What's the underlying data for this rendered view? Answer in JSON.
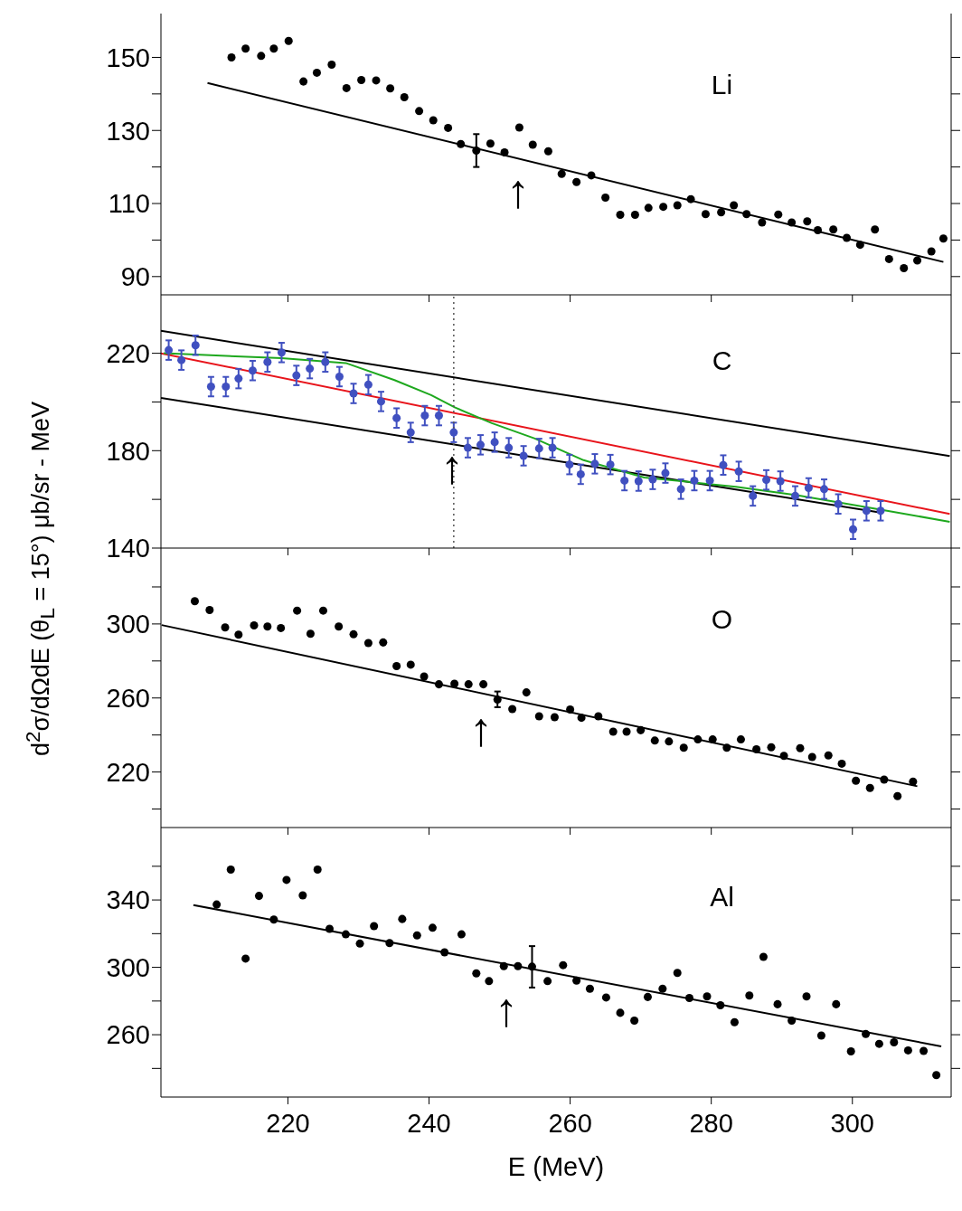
{
  "chart_data": [
    {
      "type": "scatter",
      "title": "Li",
      "xlim": [
        202,
        314
      ],
      "xticks": [
        220,
        240,
        260,
        280,
        300
      ],
      "ylim": [
        85,
        162
      ],
      "yticks": [
        90,
        {
          "value": 100,
          "label": null
        },
        110,
        {
          "value": 120,
          "label": null
        },
        130,
        {
          "value": 140,
          "label": null
        },
        150
      ],
      "tick_labels": "y",
      "marker": "circle",
      "series": [
        {
          "color": "#000000",
          "x": [
            212.0,
            214.0,
            216.2,
            218.0,
            220.1,
            222.2,
            224.1,
            226.2,
            228.3,
            230.4,
            232.5,
            234.5,
            236.5,
            238.6,
            240.6,
            242.7,
            244.5,
            246.7,
            248.7,
            250.7,
            252.8,
            254.7,
            256.9,
            258.8,
            260.9,
            263.0,
            265.0,
            267.1,
            269.2,
            271.1,
            273.2,
            275.2,
            277.1,
            279.2,
            281.4,
            283.2,
            285.0,
            287.2,
            289.5,
            291.4,
            293.6,
            295.1,
            297.3,
            299.2,
            301.1,
            303.2,
            305.2,
            307.3,
            309.2,
            311.2,
            312.9
          ],
          "values": [
            150,
            152.4,
            150.4,
            152.4,
            154.5,
            143.4,
            145.8,
            148,
            141.6,
            143.8,
            143.7,
            141.5,
            139.1,
            135.3,
            132.8,
            130.7,
            126.3,
            124.5,
            126.4,
            124,
            130.8,
            126.1,
            124.3,
            118.1,
            115.9,
            117.7,
            111.6,
            106.9,
            106.9,
            108.8,
            109.1,
            109.5,
            111.2,
            107.1,
            107.6,
            109.5,
            107.1,
            104.8,
            107,
            104.8,
            105.1,
            102.7,
            102.9,
            100.6,
            98.7,
            102.9,
            94.8,
            92.3,
            94.4,
            96.9,
            100.4
          ],
          "errors": [
            null,
            null,
            null,
            null,
            null,
            null,
            null,
            null,
            null,
            null,
            null,
            null,
            null,
            null,
            null,
            null,
            null,
            [
              120,
              129
            ],
            null,
            null,
            null,
            null,
            null,
            null,
            null,
            null,
            null,
            null,
            null,
            null,
            null,
            null,
            null,
            null,
            null,
            null,
            null,
            null,
            null,
            null,
            null,
            null,
            null,
            null,
            null,
            null,
            null,
            null,
            null,
            null,
            null
          ]
        },
        {
          "type": "line",
          "marker": "none",
          "color": "#000000",
          "x": [
            208.6,
            312.9
          ],
          "values": [
            143,
            94
          ]
        }
      ],
      "annotations": [
        "↑"
      ]
    },
    {
      "type": "scatter",
      "title": "C",
      "ylabel": "d$^{2}$σ/dΩdE  (θ$_{L}$ = 15°)  μb/sr - MeV",
      "xlim": [
        202,
        314
      ],
      "xticks": [
        220,
        240,
        260,
        280,
        300
      ],
      "ylim": [
        140,
        244
      ],
      "yticks": [
        140,
        {
          "value": 160,
          "label": null
        },
        180,
        {
          "value": 200,
          "label": null
        },
        220
      ],
      "tick_labels": "y",
      "marker": "circle",
      "series": [
        {
          "type": "line",
          "marker": "none",
          "color": "#000000",
          "x": [
            202,
            313.8
          ],
          "values": [
            229.2,
            177.8
          ]
        },
        {
          "type": "line",
          "marker": "none",
          "color": "#000000",
          "x": [
            202,
            304
          ],
          "values": [
            201.7,
            154.6
          ]
        },
        {
          "type": "line",
          "marker": "none",
          "color": "#e8141b",
          "x": [
            202,
            313.8
          ],
          "values": [
            220,
            154
          ]
        },
        {
          "type": "line",
          "marker": "none",
          "color": "#1ea81e",
          "x": [
            202.4,
            219.1,
            228.2,
            235.1,
            240.3,
            243.7,
            248.9,
            255,
            261.9,
            270.5,
            283.5,
            292.1,
            304,
            313.8
          ],
          "values": [
            220,
            218,
            216,
            209,
            202.8,
            197.7,
            191.3,
            185,
            176.1,
            169,
            165.2,
            161.7,
            155.8,
            150.8
          ]
        },
        {
          "color": "#4050c0",
          "x": [
            203.1,
            204.9,
            206.9,
            209.1,
            211.2,
            213.0,
            215.0,
            217.1,
            219.1,
            221.2,
            223.1,
            225.3,
            227.3,
            229.3,
            231.4,
            233.2,
            235.4,
            237.4,
            239.4,
            241.4,
            243.5,
            245.5,
            247.3,
            249.3,
            251.3,
            253.4,
            255.6,
            257.5,
            259.9,
            261.5,
            263.5,
            265.7,
            267.7,
            269.7,
            271.7,
            273.5,
            275.7,
            277.6,
            279.8,
            281.7,
            283.9,
            285.9,
            287.8,
            289.8,
            291.9,
            293.8,
            296.0,
            298.0,
            300.1,
            302.0,
            304.0
          ],
          "values": [
            221.3,
            217.2,
            223.3,
            206.3,
            206.3,
            209.6,
            212.9,
            216.4,
            220.3,
            210.9,
            213.7,
            216.4,
            210.4,
            203.5,
            207.1,
            200.2,
            193.4,
            187.5,
            194.4,
            194.4,
            187.5,
            181.2,
            182.4,
            183.5,
            181.2,
            177.9,
            180.9,
            181.2,
            174.3,
            170.3,
            174.6,
            174.3,
            167.7,
            167.5,
            168.2,
            170.8,
            164.2,
            167.7,
            167.7,
            174.1,
            171.5,
            161.4,
            168,
            167.5,
            161.4,
            164.7,
            164.2,
            158.1,
            147.7,
            155.3,
            155.3
          ],
          "errors": [
            4,
            4,
            4,
            4,
            4,
            4,
            4,
            4,
            4,
            4,
            4,
            4,
            4,
            4,
            4,
            4,
            4,
            4,
            4,
            4,
            4,
            4,
            4,
            4,
            4,
            4,
            4,
            4,
            4,
            4,
            4,
            4,
            4,
            4,
            4,
            4,
            4,
            4,
            4,
            4,
            4,
            4,
            4,
            4,
            4,
            4,
            4,
            4,
            4,
            4,
            4
          ]
        }
      ],
      "ref_lines": [
        {
          "axis": "x",
          "value": 243.5,
          "color": "#555555",
          "line_style": "dotted"
        }
      ],
      "annotations": [
        "↑"
      ]
    },
    {
      "type": "scatter",
      "title": "O",
      "xlim": [
        202,
        314
      ],
      "xticks": [
        220,
        240,
        260,
        280,
        300
      ],
      "ylim": [
        190,
        341
      ],
      "yticks": [
        {
          "value": 200,
          "label": null
        },
        220,
        {
          "value": 240,
          "label": null
        },
        260,
        {
          "value": 280,
          "label": null
        },
        300,
        {
          "value": 320,
          "label": null
        }
      ],
      "tick_labels": "y",
      "marker": "circle",
      "series": [
        {
          "color": "#000000",
          "x": [
            206.8,
            208.9,
            211.1,
            213.0,
            215.2,
            217.1,
            219.0,
            221.3,
            223.2,
            225.0,
            227.2,
            229.3,
            231.4,
            233.5,
            235.4,
            237.4,
            239.3,
            241.4,
            243.6,
            245.6,
            247.7,
            249.7,
            251.8,
            253.8,
            255.6,
            257.8,
            260.0,
            261.6,
            264.0,
            266.1,
            268.0,
            270.0,
            272.0,
            274.0,
            276.1,
            278.1,
            280.2,
            282.2,
            284.2,
            286.4,
            288.5,
            290.3,
            292.6,
            294.3,
            296.6,
            298.5,
            300.5,
            302.5,
            304.5,
            306.4,
            308.6
          ],
          "values": [
            312.3,
            307.5,
            298.1,
            294.2,
            299.2,
            298.6,
            297.8,
            307.2,
            294.7,
            307.2,
            298.6,
            294.4,
            289.7,
            290,
            277.2,
            278,
            271.6,
            267.4,
            267.7,
            267.4,
            267.4,
            259.1,
            254,
            263,
            250.1,
            249.6,
            253.8,
            249.3,
            250.1,
            241.8,
            241.8,
            242.6,
            237,
            236.5,
            233.1,
            237.6,
            237.6,
            233.1,
            237.6,
            232.3,
            233.4,
            228.7,
            232.9,
            228.1,
            229,
            224.5,
            215.3,
            211.4,
            215.9,
            207,
            214.8
          ],
          "errors": [
            null,
            null,
            null,
            null,
            null,
            null,
            null,
            null,
            null,
            null,
            null,
            null,
            null,
            null,
            null,
            null,
            null,
            null,
            null,
            null,
            null,
            [
              255,
              263.5
            ],
            null,
            null,
            null,
            null,
            null,
            null,
            null,
            null,
            null,
            null,
            null,
            null,
            null,
            null,
            null,
            null,
            null,
            null,
            null,
            null,
            null,
            null,
            null,
            null,
            null,
            null,
            null,
            null,
            null
          ]
        },
        {
          "type": "line",
          "marker": "none",
          "color": "#000000",
          "x": [
            202.1,
            309.2
          ],
          "values": [
            299.4,
            212.3
          ]
        }
      ],
      "annotations": [
        "↑"
      ]
    },
    {
      "type": "scatter",
      "title": "Al",
      "xlabel": "E  (MeV)",
      "xlim": [
        202,
        314
      ],
      "xticks": [
        220,
        240,
        260,
        280,
        300
      ],
      "ylim": [
        223,
        383
      ],
      "yticks": [
        {
          "value": 240,
          "label": null
        },
        260,
        {
          "value": 280,
          "label": null
        },
        300,
        {
          "value": 320,
          "label": null
        },
        340,
        {
          "value": 360,
          "label": null
        }
      ],
      "marker": "circle",
      "series": [
        {
          "color": "#000000",
          "x": [
            209.9,
            211.9,
            214.0,
            215.9,
            218.0,
            219.8,
            222.1,
            224.2,
            225.9,
            228.2,
            230.2,
            232.2,
            234.4,
            236.2,
            238.3,
            240.5,
            242.2,
            244.6,
            246.7,
            248.5,
            250.6,
            252.6,
            254.6,
            256.8,
            259.0,
            260.9,
            262.8,
            265.1,
            267.1,
            269.1,
            271.0,
            273.1,
            275.2,
            276.9,
            279.4,
            281.3,
            283.3,
            285.4,
            287.4,
            289.4,
            291.4,
            293.5,
            295.6,
            297.7,
            299.8,
            301.9,
            303.8,
            305.9,
            307.9,
            310.1,
            311.9
          ],
          "values": [
            337.3,
            358,
            305.2,
            342.4,
            328.4,
            351.9,
            342.7,
            358,
            322.9,
            319.6,
            314.1,
            324.5,
            314.4,
            328.7,
            319,
            323.5,
            308.9,
            319.6,
            296.4,
            291.8,
            300.7,
            300.7,
            300.4,
            291.8,
            301.3,
            292.1,
            287.3,
            282.1,
            273,
            268.4,
            282.4,
            287.3,
            296.7,
            281.8,
            282.7,
            277.5,
            267.4,
            283.3,
            306.2,
            278.1,
            268.4,
            282.7,
            259.5,
            278.1,
            250.1,
            260.4,
            254.6,
            255.5,
            250.7,
            250.4,
            236
          ],
          "errors": [
            null,
            null,
            null,
            null,
            null,
            null,
            null,
            null,
            null,
            null,
            null,
            null,
            null,
            null,
            null,
            null,
            null,
            null,
            null,
            null,
            null,
            null,
            [
              288,
              312.6
            ],
            null,
            null,
            null,
            null,
            null,
            null,
            null,
            null,
            null,
            null,
            null,
            null,
            null,
            null,
            null,
            null,
            null,
            null,
            null,
            null,
            null,
            null,
            null,
            null,
            null,
            null,
            null,
            null
          ]
        },
        {
          "type": "line",
          "marker": "none",
          "color": "#000000",
          "x": [
            206.6,
            312.6
          ],
          "values": [
            337,
            253.1
          ]
        }
      ],
      "annotations": [
        "↑"
      ]
    }
  ]
}
